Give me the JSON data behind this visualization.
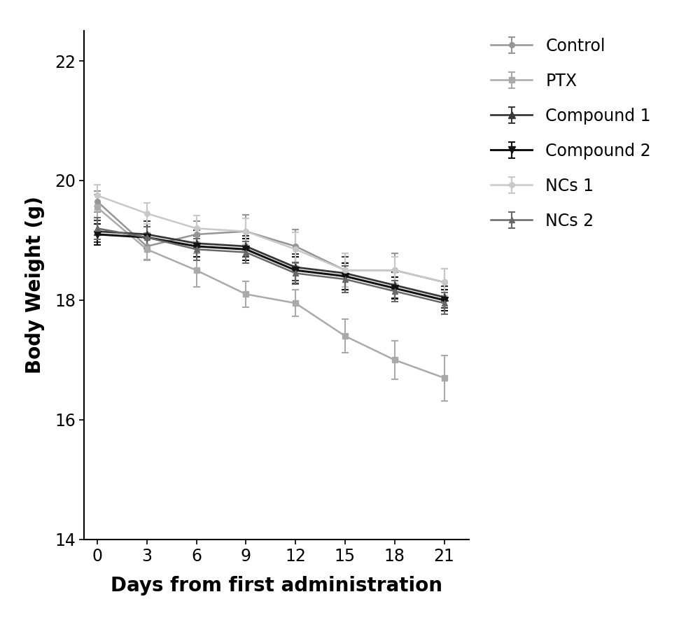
{
  "x": [
    0,
    3,
    6,
    9,
    12,
    15,
    18,
    21
  ],
  "series": [
    {
      "label": "Control",
      "color": "#959595",
      "linewidth": 1.8,
      "marker": "o",
      "markersize": 5.5,
      "y": [
        19.65,
        18.9,
        19.1,
        19.15,
        18.9,
        18.5,
        18.5,
        18.3
      ],
      "yerr": [
        0.18,
        0.22,
        0.22,
        0.28,
        0.28,
        0.28,
        0.28,
        0.22
      ]
    },
    {
      "label": "PTX",
      "color": "#aaaaaa",
      "linewidth": 1.8,
      "marker": "s",
      "markersize": 5.5,
      "y": [
        19.55,
        18.85,
        18.5,
        18.1,
        17.95,
        17.4,
        17.0,
        16.7
      ],
      "yerr": [
        0.22,
        0.18,
        0.28,
        0.22,
        0.22,
        0.28,
        0.32,
        0.38
      ]
    },
    {
      "label": "Compound 1",
      "color": "#383838",
      "linewidth": 2.0,
      "marker": "^",
      "markersize": 6.5,
      "y": [
        19.15,
        19.1,
        18.95,
        18.9,
        18.55,
        18.45,
        18.25,
        18.05
      ],
      "yerr": [
        0.18,
        0.22,
        0.22,
        0.18,
        0.22,
        0.28,
        0.22,
        0.18
      ]
    },
    {
      "label": "Compound 2",
      "color": "#111111",
      "linewidth": 2.2,
      "marker": "v",
      "markersize": 6.5,
      "y": [
        19.1,
        19.05,
        18.9,
        18.85,
        18.5,
        18.4,
        18.2,
        18.0
      ],
      "yerr": [
        0.18,
        0.18,
        0.18,
        0.18,
        0.22,
        0.22,
        0.18,
        0.18
      ]
    },
    {
      "label": "NCs 1",
      "color": "#c8c8c8",
      "linewidth": 1.8,
      "marker": "o",
      "markersize": 5.5,
      "y": [
        19.75,
        19.45,
        19.2,
        19.15,
        18.85,
        18.5,
        18.5,
        18.3
      ],
      "yerr": [
        0.18,
        0.18,
        0.22,
        0.22,
        0.28,
        0.28,
        0.22,
        0.22
      ]
    },
    {
      "label": "NCs 2",
      "color": "#686868",
      "linewidth": 1.8,
      "marker": "^",
      "markersize": 5.5,
      "y": [
        19.2,
        19.05,
        18.85,
        18.8,
        18.45,
        18.35,
        18.15,
        17.95
      ],
      "yerr": [
        0.18,
        0.18,
        0.18,
        0.18,
        0.18,
        0.22,
        0.18,
        0.18
      ]
    }
  ],
  "xlabel": "Days from first administration",
  "ylabel": "Body Weight (g)",
  "xlim": [
    -0.8,
    22.5
  ],
  "ylim": [
    14,
    22.5
  ],
  "yticks": [
    14,
    16,
    18,
    20,
    22
  ],
  "xticks": [
    0,
    3,
    6,
    9,
    12,
    15,
    18,
    21
  ],
  "label_fontsize": 20,
  "tick_fontsize": 17,
  "legend_fontsize": 17,
  "background_color": "#ffffff"
}
